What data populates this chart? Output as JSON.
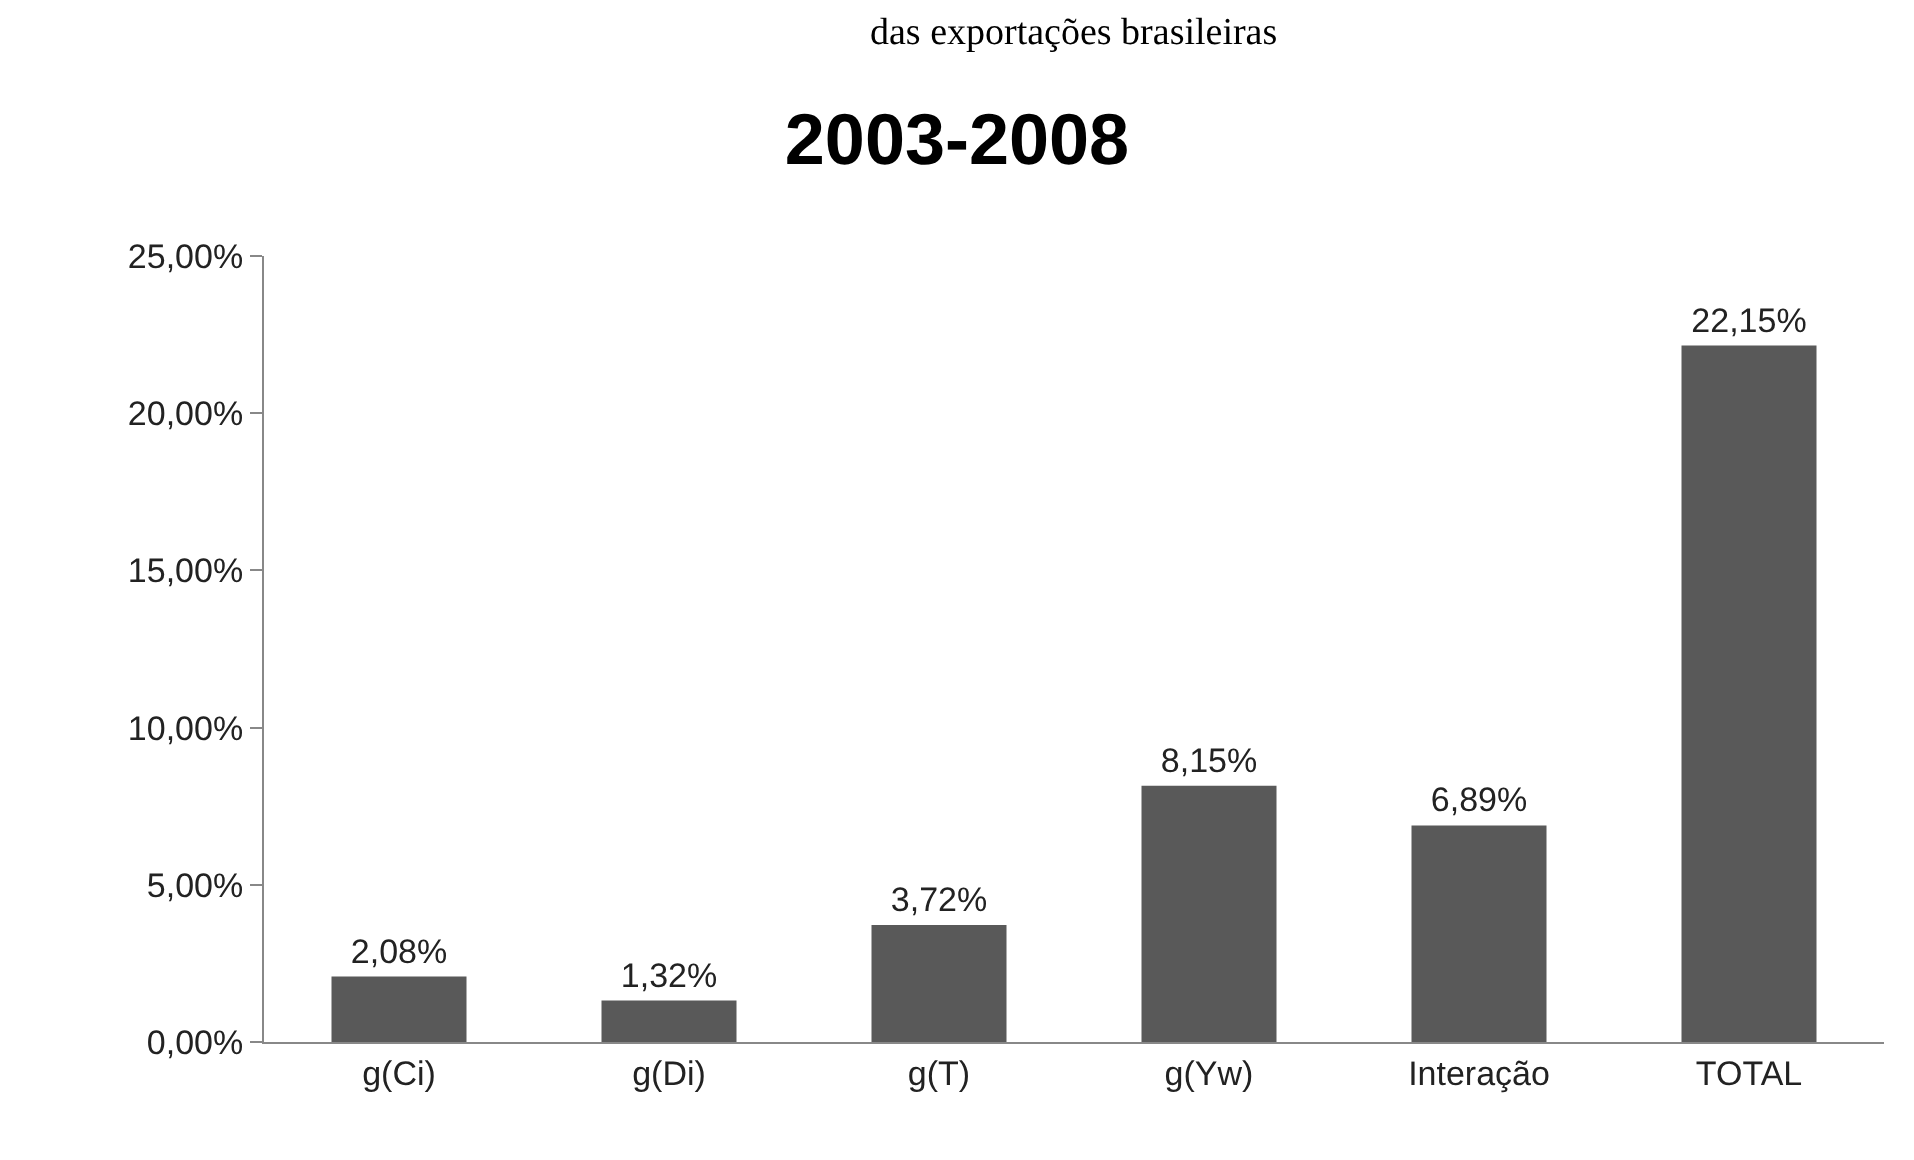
{
  "chart_data": {
    "type": "bar",
    "title": "2003-2008",
    "annotations": [
      "das exportações brasileiras"
    ],
    "categories": [
      "g(Ci)",
      "g(Di)",
      "g(T)",
      "g(Yw)",
      "Interação",
      "TOTAL"
    ],
    "values": [
      2.08,
      1.32,
      3.72,
      8.15,
      6.89,
      22.15
    ],
    "value_labels": [
      "2,08%",
      "1,32%",
      "3,72%",
      "8,15%",
      "6,89%",
      "22,15%"
    ],
    "color": "#595959",
    "ylim": [
      0,
      25
    ],
    "yticks": [
      {
        "value": 0,
        "label": "0,00%"
      },
      {
        "value": 5,
        "label": "5,00%"
      },
      {
        "value": 10,
        "label": "10,00%"
      },
      {
        "value": 15,
        "label": "15,00%"
      },
      {
        "value": 20,
        "label": "20,00%"
      },
      {
        "value": 25,
        "label": "25,00%"
      }
    ],
    "grid": false,
    "legend": false
  }
}
